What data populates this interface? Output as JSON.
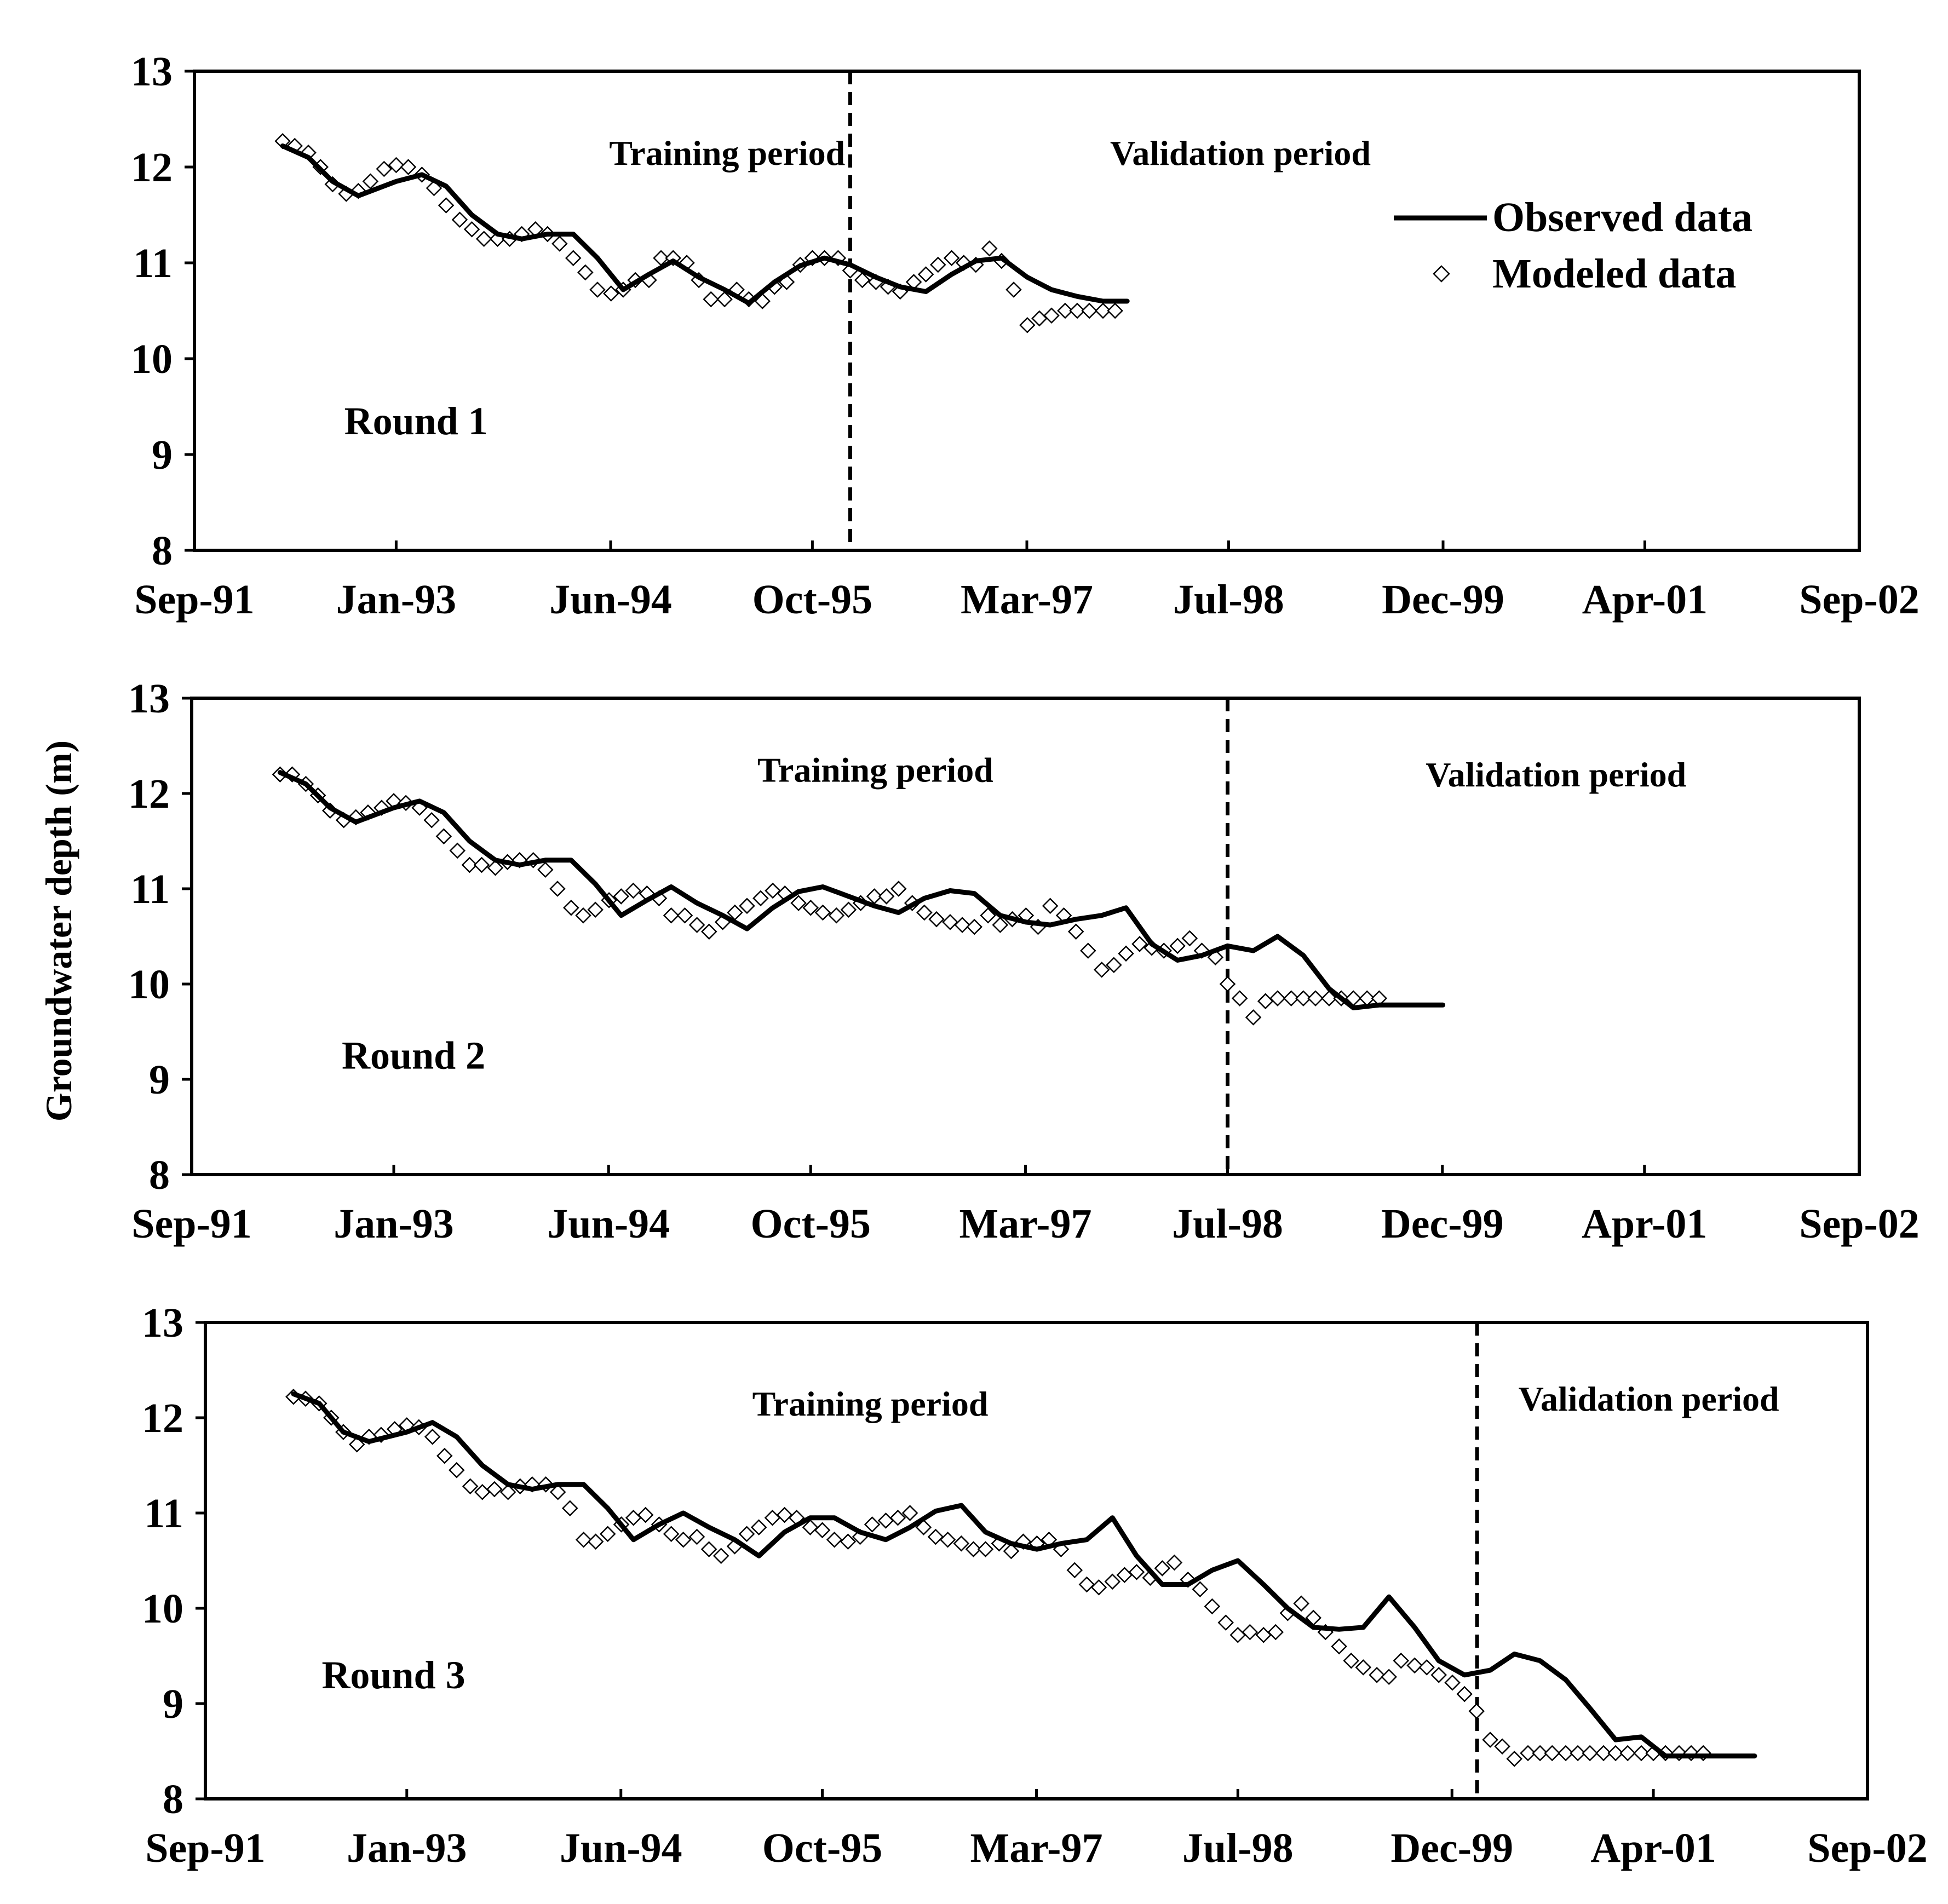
{
  "figure": {
    "ylabel": "Groundwater depth (m)",
    "legend": {
      "observed": "Observed data",
      "modeled": "Modeled data"
    },
    "colors": {
      "line": "#000000",
      "marker_stroke": "#000000",
      "marker_fill": "#ffffff",
      "background": "#ffffff"
    }
  },
  "chart_data": [
    {
      "type": "line",
      "round_label": "Round 1",
      "training_label": "Training period",
      "validation_label": "Validation period",
      "split": 1996.0,
      "xlim": [
        1991.667,
        2002.667
      ],
      "ylim": [
        8,
        13
      ],
      "xticks": [
        {
          "value": 1991.667,
          "label": "Sep-91"
        },
        {
          "value": 1993.0,
          "label": "Jan-93"
        },
        {
          "value": 1994.417,
          "label": "Jun-94"
        },
        {
          "value": 1995.75,
          "label": "Oct-95"
        },
        {
          "value": 1997.167,
          "label": "Mar-97"
        },
        {
          "value": 1998.5,
          "label": "Jul-98"
        },
        {
          "value": 1999.917,
          "label": "Dec-99"
        },
        {
          "value": 2001.25,
          "label": "Apr-01"
        },
        {
          "value": 2002.667,
          "label": "Sep-02"
        }
      ],
      "yticks": [
        8,
        9,
        10,
        11,
        12,
        13
      ],
      "observed": {
        "x": [
          1992.25,
          1992.42,
          1992.58,
          1992.75,
          1993.0,
          1993.17,
          1993.33,
          1993.5,
          1993.67,
          1993.83,
          1994.0,
          1994.17,
          1994.33,
          1994.5,
          1994.67,
          1994.83,
          1995.0,
          1995.17,
          1995.33,
          1995.5,
          1995.67,
          1995.83,
          1996.0,
          1996.17,
          1996.33,
          1996.5,
          1996.67,
          1996.83,
          1997.0,
          1997.17,
          1997.33,
          1997.5,
          1997.67,
          1997.83
        ],
        "y": [
          12.22,
          12.1,
          11.85,
          11.7,
          11.85,
          11.92,
          11.8,
          11.5,
          11.3,
          11.25,
          11.3,
          11.3,
          11.05,
          10.72,
          10.88,
          11.02,
          10.85,
          10.72,
          10.58,
          10.8,
          10.97,
          11.05,
          10.98,
          10.85,
          10.75,
          10.7,
          10.88,
          11.02,
          11.05,
          10.85,
          10.72,
          10.65,
          10.6,
          10.6
        ]
      },
      "modeled": {
        "x": [
          1992.25,
          1992.33,
          1992.42,
          1992.5,
          1992.58,
          1992.67,
          1992.75,
          1992.83,
          1992.92,
          1993.0,
          1993.08,
          1993.17,
          1993.25,
          1993.33,
          1993.42,
          1993.5,
          1993.58,
          1993.67,
          1993.75,
          1993.83,
          1993.92,
          1994.0,
          1994.08,
          1994.17,
          1994.25,
          1994.33,
          1994.42,
          1994.5,
          1994.58,
          1994.67,
          1994.75,
          1994.83,
          1994.92,
          1995.0,
          1995.08,
          1995.17,
          1995.25,
          1995.33,
          1995.42,
          1995.5,
          1995.58,
          1995.67,
          1995.75,
          1995.83,
          1995.92,
          1996.0,
          1996.08,
          1996.17,
          1996.25,
          1996.33,
          1996.42,
          1996.5,
          1996.58,
          1996.67,
          1996.75,
          1996.83,
          1996.92,
          1997.0,
          1997.08,
          1997.17,
          1997.25,
          1997.33,
          1997.42,
          1997.5,
          1997.58,
          1997.67,
          1997.75
        ],
        "y": [
          12.27,
          12.22,
          12.15,
          12.0,
          11.82,
          11.72,
          11.75,
          11.85,
          11.98,
          12.02,
          12.0,
          11.92,
          11.78,
          11.6,
          11.45,
          11.35,
          11.25,
          11.25,
          11.25,
          11.3,
          11.35,
          11.3,
          11.2,
          11.05,
          10.9,
          10.72,
          10.68,
          10.72,
          10.82,
          10.82,
          11.05,
          11.05,
          11.0,
          10.82,
          10.62,
          10.62,
          10.72,
          10.62,
          10.6,
          10.75,
          10.8,
          10.98,
          11.05,
          11.05,
          11.05,
          10.92,
          10.82,
          10.8,
          10.75,
          10.7,
          10.8,
          10.88,
          10.98,
          11.05,
          11.0,
          10.98,
          11.15,
          11.02,
          10.72,
          10.35,
          10.42,
          10.45,
          10.5,
          10.5,
          10.5,
          10.5,
          10.5
        ]
      }
    },
    {
      "type": "line",
      "round_label": "Round 2",
      "training_label": "Training period",
      "validation_label": "Validation period",
      "split": 1998.5,
      "xlim": [
        1991.667,
        2002.667
      ],
      "ylim": [
        8,
        13
      ],
      "xticks": [
        {
          "value": 1991.667,
          "label": "Sep-91"
        },
        {
          "value": 1993.0,
          "label": "Jan-93"
        },
        {
          "value": 1994.417,
          "label": "Jun-94"
        },
        {
          "value": 1995.75,
          "label": "Oct-95"
        },
        {
          "value": 1997.167,
          "label": "Mar-97"
        },
        {
          "value": 1998.5,
          "label": "Jul-98"
        },
        {
          "value": 1999.917,
          "label": "Dec-99"
        },
        {
          "value": 2001.25,
          "label": "Apr-01"
        },
        {
          "value": 2002.667,
          "label": "Sep-02"
        }
      ],
      "yticks": [
        8,
        9,
        10,
        11,
        12,
        13
      ],
      "observed": {
        "x": [
          1992.25,
          1992.42,
          1992.58,
          1992.75,
          1993.0,
          1993.17,
          1993.33,
          1993.5,
          1993.67,
          1993.83,
          1994.0,
          1994.17,
          1994.33,
          1994.5,
          1994.67,
          1994.83,
          1995.0,
          1995.17,
          1995.33,
          1995.5,
          1995.67,
          1995.83,
          1996.0,
          1996.17,
          1996.33,
          1996.5,
          1996.67,
          1996.83,
          1997.0,
          1997.17,
          1997.33,
          1997.5,
          1997.67,
          1997.83,
          1998.0,
          1998.17,
          1998.33,
          1998.5,
          1998.67,
          1998.83,
          1999.0,
          1999.17,
          1999.33,
          1999.5,
          1999.67,
          1999.83,
          1999.92
        ],
        "y": [
          12.22,
          12.1,
          11.85,
          11.7,
          11.85,
          11.92,
          11.8,
          11.5,
          11.3,
          11.25,
          11.3,
          11.3,
          11.05,
          10.72,
          10.88,
          11.02,
          10.85,
          10.72,
          10.58,
          10.8,
          10.97,
          11.02,
          10.92,
          10.82,
          10.75,
          10.9,
          10.98,
          10.95,
          10.72,
          10.65,
          10.62,
          10.68,
          10.72,
          10.8,
          10.42,
          10.25,
          10.3,
          10.4,
          10.35,
          10.5,
          10.3,
          9.95,
          9.75,
          9.78,
          9.78,
          9.78,
          9.78
        ]
      },
      "modeled": {
        "x": [
          1992.25,
          1992.33,
          1992.42,
          1992.5,
          1992.58,
          1992.67,
          1992.75,
          1992.83,
          1992.92,
          1993.0,
          1993.08,
          1993.17,
          1993.25,
          1993.33,
          1993.42,
          1993.5,
          1993.58,
          1993.67,
          1993.75,
          1993.83,
          1993.92,
          1994.0,
          1994.08,
          1994.17,
          1994.25,
          1994.33,
          1994.42,
          1994.5,
          1994.58,
          1994.67,
          1994.75,
          1994.83,
          1994.92,
          1995.0,
          1995.08,
          1995.17,
          1995.25,
          1995.33,
          1995.42,
          1995.5,
          1995.58,
          1995.67,
          1995.75,
          1995.83,
          1995.92,
          1996.0,
          1996.08,
          1996.17,
          1996.25,
          1996.33,
          1996.42,
          1996.5,
          1996.58,
          1996.67,
          1996.75,
          1996.83,
          1996.92,
          1997.0,
          1997.08,
          1997.17,
          1997.25,
          1997.33,
          1997.42,
          1997.5,
          1997.58,
          1997.67,
          1997.75,
          1997.83,
          1997.92,
          1998.0,
          1998.08,
          1998.17,
          1998.25,
          1998.33,
          1998.42,
          1998.5,
          1998.58,
          1998.67,
          1998.75,
          1998.83,
          1998.92,
          1999.0,
          1999.08,
          1999.17,
          1999.25,
          1999.33,
          1999.42,
          1999.5
        ],
        "y": [
          12.2,
          12.2,
          12.1,
          11.98,
          11.82,
          11.72,
          11.75,
          11.8,
          11.85,
          11.92,
          11.9,
          11.85,
          11.72,
          11.55,
          11.4,
          11.25,
          11.25,
          11.22,
          11.28,
          11.3,
          11.3,
          11.2,
          11.0,
          10.8,
          10.72,
          10.78,
          10.88,
          10.92,
          10.98,
          10.95,
          10.9,
          10.72,
          10.72,
          10.62,
          10.55,
          10.65,
          10.75,
          10.82,
          10.9,
          10.98,
          10.95,
          10.85,
          10.8,
          10.75,
          10.72,
          10.78,
          10.85,
          10.92,
          10.92,
          11.0,
          10.85,
          10.75,
          10.68,
          10.65,
          10.62,
          10.6,
          10.72,
          10.62,
          10.68,
          10.72,
          10.6,
          10.82,
          10.72,
          10.55,
          10.35,
          10.15,
          10.2,
          10.32,
          10.42,
          10.38,
          10.35,
          10.4,
          10.48,
          10.35,
          10.28,
          10.0,
          9.85,
          9.65,
          9.82,
          9.85,
          9.85,
          9.85,
          9.85,
          9.85,
          9.85,
          9.85,
          9.85,
          9.85
        ]
      }
    },
    {
      "type": "line",
      "round_label": "Round 3",
      "training_label": "Training period",
      "validation_label": "Validation period",
      "split": 2000.083,
      "xlim": [
        1991.667,
        2002.667
      ],
      "ylim": [
        8,
        13
      ],
      "xticks": [
        {
          "value": 1991.667,
          "label": "Sep-91"
        },
        {
          "value": 1993.0,
          "label": "Jan-93"
        },
        {
          "value": 1994.417,
          "label": "Jun-94"
        },
        {
          "value": 1995.75,
          "label": "Oct-95"
        },
        {
          "value": 1997.167,
          "label": "Mar-97"
        },
        {
          "value": 1998.5,
          "label": "Jul-98"
        },
        {
          "value": 1999.917,
          "label": "Dec-99"
        },
        {
          "value": 2001.25,
          "label": "Apr-01"
        },
        {
          "value": 2002.667,
          "label": "Sep-02"
        }
      ],
      "yticks": [
        8,
        9,
        10,
        11,
        12,
        13
      ],
      "observed": {
        "x": [
          1992.25,
          1992.42,
          1992.58,
          1992.75,
          1993.0,
          1993.17,
          1993.33,
          1993.5,
          1993.67,
          1993.83,
          1994.0,
          1994.17,
          1994.33,
          1994.5,
          1994.67,
          1994.83,
          1995.0,
          1995.17,
          1995.33,
          1995.5,
          1995.67,
          1995.83,
          1996.0,
          1996.17,
          1996.33,
          1996.5,
          1996.67,
          1996.83,
          1997.0,
          1997.17,
          1997.33,
          1997.5,
          1997.67,
          1997.83,
          1998.0,
          1998.17,
          1998.33,
          1998.5,
          1998.67,
          1998.83,
          1999.0,
          1999.17,
          1999.33,
          1999.5,
          1999.67,
          1999.83,
          2000.0,
          2000.17,
          2000.33,
          2000.5,
          2000.67,
          2000.83,
          2001.0,
          2001.17,
          2001.33,
          2001.5,
          2001.67,
          2001.83,
          2001.92
        ],
        "y": [
          12.25,
          12.15,
          11.85,
          11.75,
          11.85,
          11.95,
          11.8,
          11.5,
          11.3,
          11.25,
          11.3,
          11.3,
          11.05,
          10.72,
          10.88,
          11.0,
          10.85,
          10.72,
          10.55,
          10.8,
          10.95,
          10.95,
          10.8,
          10.72,
          10.85,
          11.02,
          11.08,
          10.8,
          10.68,
          10.62,
          10.68,
          10.72,
          10.95,
          10.55,
          10.25,
          10.25,
          10.4,
          10.5,
          10.25,
          10.0,
          9.8,
          9.78,
          9.8,
          10.12,
          9.8,
          9.45,
          9.3,
          9.35,
          9.52,
          9.45,
          9.25,
          8.95,
          8.62,
          8.65,
          8.45,
          8.45,
          8.45,
          8.45,
          8.45
        ]
      },
      "modeled": {
        "x": [
          1992.25,
          1992.33,
          1992.42,
          1992.5,
          1992.58,
          1992.67,
          1992.75,
          1992.83,
          1992.92,
          1993.0,
          1993.08,
          1993.17,
          1993.25,
          1993.33,
          1993.42,
          1993.5,
          1993.58,
          1993.67,
          1993.75,
          1993.83,
          1993.92,
          1994.0,
          1994.08,
          1994.17,
          1994.25,
          1994.33,
          1994.42,
          1994.5,
          1994.58,
          1994.67,
          1994.75,
          1994.83,
          1994.92,
          1995.0,
          1995.08,
          1995.17,
          1995.25,
          1995.33,
          1995.42,
          1995.5,
          1995.58,
          1995.67,
          1995.75,
          1995.83,
          1995.92,
          1996.0,
          1996.08,
          1996.17,
          1996.25,
          1996.33,
          1996.42,
          1996.5,
          1996.58,
          1996.67,
          1996.75,
          1996.83,
          1996.92,
          1997.0,
          1997.08,
          1997.17,
          1997.25,
          1997.33,
          1997.42,
          1997.5,
          1997.58,
          1997.67,
          1997.75,
          1997.83,
          1997.92,
          1998.0,
          1998.08,
          1998.17,
          1998.25,
          1998.33,
          1998.42,
          1998.5,
          1998.58,
          1998.67,
          1998.75,
          1998.83,
          1998.92,
          1999.0,
          1999.08,
          1999.17,
          1999.25,
          1999.33,
          1999.42,
          1999.5,
          1999.58,
          1999.67,
          1999.75,
          1999.83,
          1999.92,
          2000.0,
          2000.08,
          2000.17,
          2000.25,
          2000.33,
          2000.42,
          2000.5,
          2000.58,
          2000.67,
          2000.75,
          2000.83,
          2000.92,
          2001.0,
          2001.08,
          2001.17,
          2001.25,
          2001.33,
          2001.42,
          2001.5,
          2001.58
        ],
        "y": [
          12.22,
          12.2,
          12.15,
          12.0,
          11.85,
          11.72,
          11.8,
          11.82,
          11.88,
          11.92,
          11.9,
          11.8,
          11.6,
          11.45,
          11.28,
          11.22,
          11.25,
          11.22,
          11.28,
          11.3,
          11.3,
          11.22,
          11.05,
          10.72,
          10.7,
          10.78,
          10.88,
          10.95,
          10.98,
          10.88,
          10.78,
          10.72,
          10.75,
          10.62,
          10.55,
          10.65,
          10.78,
          10.85,
          10.95,
          10.98,
          10.95,
          10.85,
          10.82,
          10.72,
          10.7,
          10.75,
          10.88,
          10.92,
          10.95,
          11.0,
          10.85,
          10.75,
          10.72,
          10.68,
          10.62,
          10.62,
          10.68,
          10.6,
          10.7,
          10.68,
          10.72,
          10.62,
          10.4,
          10.25,
          10.22,
          10.28,
          10.35,
          10.38,
          10.32,
          10.42,
          10.48,
          10.3,
          10.2,
          10.02,
          9.85,
          9.72,
          9.75,
          9.72,
          9.75,
          9.95,
          10.05,
          9.9,
          9.75,
          9.6,
          9.45,
          9.38,
          9.3,
          9.28,
          9.45,
          9.4,
          9.38,
          9.3,
          9.22,
          9.1,
          8.92,
          8.62,
          8.55,
          8.42,
          8.48,
          8.48,
          8.48,
          8.48,
          8.48,
          8.48,
          8.48,
          8.48,
          8.48,
          8.48,
          8.48,
          8.48,
          8.48,
          8.48,
          8.48
        ]
      }
    }
  ]
}
